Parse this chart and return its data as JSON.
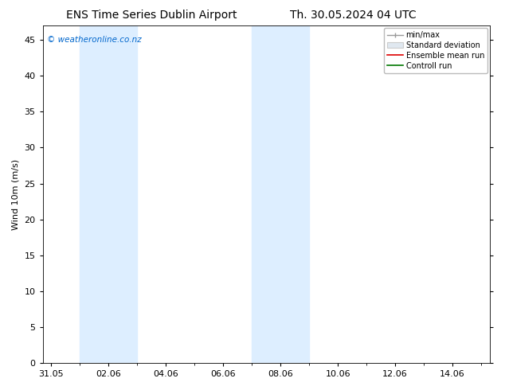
{
  "title_left": "ENS Time Series Dublin Airport",
  "title_right": "Th. 30.05.2024 04 UTC",
  "ylabel": "Wind 10m (m/s)",
  "watermark": "© weatheronline.co.nz",
  "watermark_color": "#0066cc",
  "ylim": [
    0,
    47
  ],
  "yticks": [
    0,
    5,
    10,
    15,
    20,
    25,
    30,
    35,
    40,
    45
  ],
  "xtick_positions": [
    0,
    2,
    4,
    6,
    8,
    10,
    12,
    14
  ],
  "xtick_labels": [
    "31.05",
    "02.06",
    "04.06",
    "06.06",
    "08.06",
    "10.06",
    "12.06",
    "14.06"
  ],
  "xlim": [
    -0.3,
    15.3
  ],
  "background_color": "#ffffff",
  "plot_bg_color": "#ffffff",
  "shaded_bands": [
    {
      "xmin": 1.0,
      "xmax": 3.0,
      "color": "#ddeeff"
    },
    {
      "xmin": 7.0,
      "xmax": 9.0,
      "color": "#ddeeff"
    }
  ],
  "legend_labels": [
    "min/max",
    "Standard deviation",
    "Ensemble mean run",
    "Controll run"
  ],
  "legend_line_colors": [
    "#999999",
    "#cccccc",
    "#dd0000",
    "#007700"
  ],
  "title_fontsize": 10,
  "tick_fontsize": 8,
  "label_fontsize": 8,
  "watermark_fontsize": 7.5,
  "legend_fontsize": 7
}
